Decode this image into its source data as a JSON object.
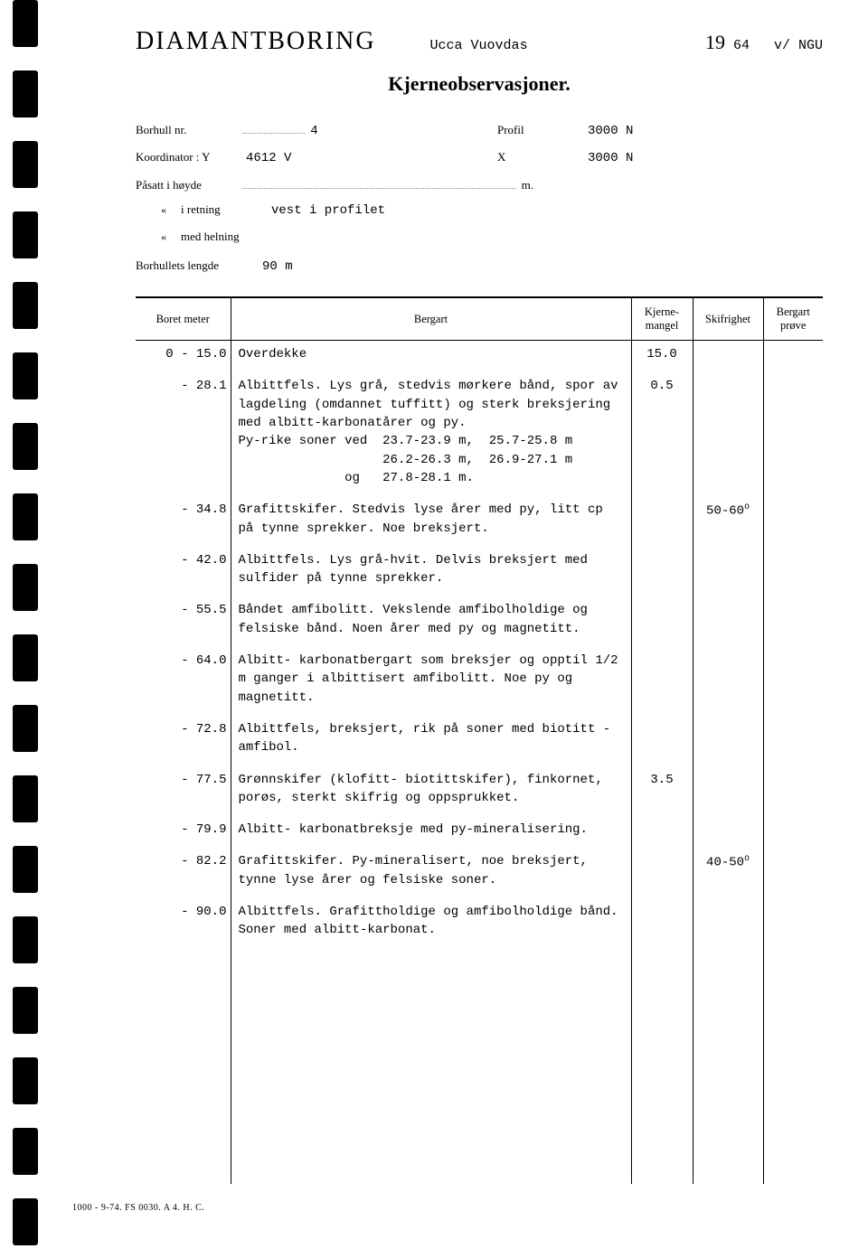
{
  "header": {
    "main_title": "DIAMANTBORING",
    "location": "Ucca Vuovdas",
    "year_prefix": "19",
    "year_suffix": "64",
    "org": "v/ NGU"
  },
  "section_title": "Kjerneobservasjoner.",
  "meta": {
    "borhull_label": "Borhull nr.",
    "borhull_val": "4",
    "profil_label": "Profil",
    "profil_val": "3000 N",
    "koord_label": "Koordinator : Y",
    "koord_val": "4612 V",
    "x_label": "X",
    "x_val": "3000 N",
    "hoyde_label": "Påsatt i høyde",
    "hoyde_unit": "m.",
    "retning_label": "i retning",
    "retning_val": "vest i profilet",
    "helning_label": "med helning",
    "lengde_label": "Borhullets lengde",
    "lengde_val": "90 m"
  },
  "columns": {
    "meter": "Boret meter",
    "bergart": "Bergart",
    "mangel": "Kjerne-\nmangel",
    "mangel_l1": "Kjerne-",
    "mangel_l2": "mangel",
    "skifrighet": "Skifrighet",
    "prove": "Bergart\nprøve",
    "prove_l1": "Bergart",
    "prove_l2": "prøve"
  },
  "rows": [
    {
      "meter": "0 - 15.0",
      "bergart": "Overdekke",
      "mangel": "15.0",
      "skif": "",
      "prove": ""
    },
    {
      "meter": "- 28.1",
      "bergart": "Albittfels. Lys grå, stedvis mørkere bånd, spor av lagdeling (omdannet tuffitt) og sterk breksjering med albitt-karbonatårer og py.\nPy-rike soner ved  23.7-23.9 m,  25.7-25.8 m\n                   26.2-26.3 m,  26.9-27.1 m\n              og   27.8-28.1 m.",
      "mangel": "0.5",
      "skif": "",
      "prove": ""
    },
    {
      "meter": "- 34.8",
      "bergart": "Grafittskifer. Stedvis lyse årer med py, litt cp på tynne sprekker. Noe breksjert.",
      "mangel": "",
      "skif": "50-60°",
      "prove": ""
    },
    {
      "meter": "- 42.0",
      "bergart": "Albittfels. Lys grå-hvit. Delvis breksjert med sulfider på tynne sprekker.",
      "mangel": "",
      "skif": "",
      "prove": ""
    },
    {
      "meter": "- 55.5",
      "bergart": "Båndet amfibolitt. Vekslende amfibolholdige og felsiske bånd. Noen årer med py og magnetitt.",
      "mangel": "",
      "skif": "",
      "prove": ""
    },
    {
      "meter": "- 64.0",
      "bergart": "Albitt- karbonatbergart som breksjer og opptil 1/2 m ganger i albittisert amfibolitt. Noe py og magnetitt.",
      "mangel": "",
      "skif": "",
      "prove": ""
    },
    {
      "meter": "- 72.8",
      "bergart": "Albittfels, breksjert, rik på soner med biotitt - amfibol.",
      "mangel": "",
      "skif": "",
      "prove": ""
    },
    {
      "meter": "- 77.5",
      "bergart": "Grønnskifer (klofitt- biotittskifer), finkornet, porøs, sterkt skifrig og oppsprukket.",
      "mangel": "3.5",
      "skif": "",
      "prove": ""
    },
    {
      "meter": "- 79.9",
      "bergart": "Albitt- karbonatbreksje med py-mineralisering.",
      "mangel": "",
      "skif": "",
      "prove": ""
    },
    {
      "meter": "- 82.2",
      "bergart": "Grafittskifer. Py-mineralisert, noe breksjert, tynne lyse årer og felsiske soner.",
      "mangel": "",
      "skif": "40-50°",
      "prove": ""
    },
    {
      "meter": "- 90.0",
      "bergart": "Albittfels. Grafittholdige og amfibolholdige bånd.\nSoner med albitt-karbonat.",
      "mangel": "",
      "skif": "",
      "prove": ""
    }
  ],
  "footer": "1000 - 9-74. FS 0030. A 4. H. C."
}
